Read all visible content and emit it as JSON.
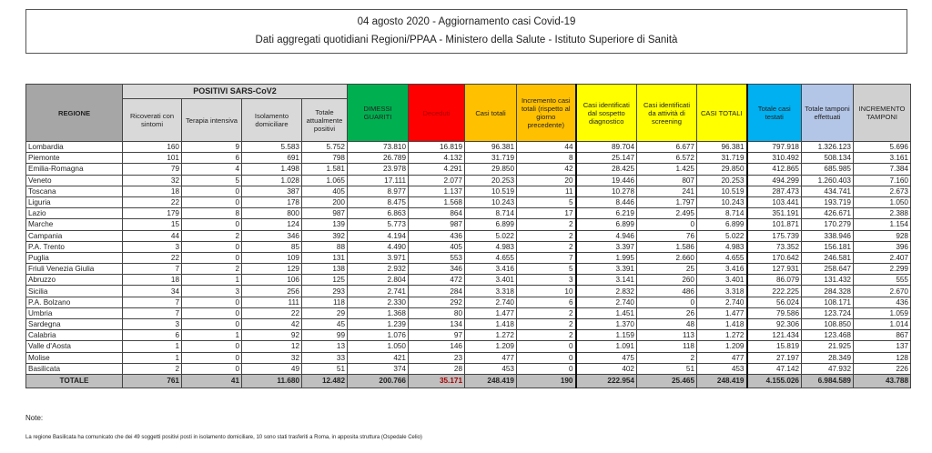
{
  "title": "04 agosto 2020 - Aggiornamento casi Covid-19",
  "subtitle": "Dati aggregati quotidiani Regioni/PPAA - Ministero della Salute - Istituto Superiore di Sanità",
  "header": {
    "regione": "REGIONE",
    "positivi_group": "POSITIVI SARS-CoV2",
    "columns": [
      "Ricoverati con sintomi",
      "Terapia intensiva",
      "Isolamento domiciliare",
      "Totale attualmente positivi",
      "DIMESSI GUARITI",
      "Deceduti",
      "Casi totali",
      "Incremento casi totali (rispetto al giorno precedente)",
      "Casi identificati dal sospetto diagnostico",
      "Casi identificati da attività di screening",
      "CASI TOTALI",
      "Totale casi testati",
      "Totale tamponi effettuati",
      "INCREMENTO TAMPONI"
    ]
  },
  "colors": {
    "dimessi": "#00b050",
    "deceduti": "#ff0000",
    "casi": "#ffc000",
    "identificati": "#ffff00",
    "testati": "#00b0f0",
    "tamponi": "#b4c6e7",
    "grey": "#bfbfbf"
  },
  "rows": [
    [
      "Lombardia",
      "160",
      "9",
      "5.583",
      "5.752",
      "73.810",
      "16.819",
      "96.381",
      "44",
      "89.704",
      "6.677",
      "96.381",
      "797.918",
      "1.326.123",
      "5.696"
    ],
    [
      "Piemonte",
      "101",
      "6",
      "691",
      "798",
      "26.789",
      "4.132",
      "31.719",
      "8",
      "25.147",
      "6.572",
      "31.719",
      "310.492",
      "508.134",
      "3.161"
    ],
    [
      "Emilia-Romagna",
      "79",
      "4",
      "1.498",
      "1.581",
      "23.978",
      "4.291",
      "29.850",
      "42",
      "28.425",
      "1.425",
      "29.850",
      "412.865",
      "685.985",
      "7.384"
    ],
    [
      "Veneto",
      "32",
      "5",
      "1.028",
      "1.065",
      "17.111",
      "2.077",
      "20.253",
      "20",
      "19.446",
      "807",
      "20.253",
      "494.299",
      "1.260.403",
      "7.160"
    ],
    [
      "Toscana",
      "18",
      "0",
      "387",
      "405",
      "8.977",
      "1.137",
      "10.519",
      "11",
      "10.278",
      "241",
      "10.519",
      "287.473",
      "434.741",
      "2.673"
    ],
    [
      "Liguria",
      "22",
      "0",
      "178",
      "200",
      "8.475",
      "1.568",
      "10.243",
      "5",
      "8.446",
      "1.797",
      "10.243",
      "103.441",
      "193.719",
      "1.050"
    ],
    [
      "Lazio",
      "179",
      "8",
      "800",
      "987",
      "6.863",
      "864",
      "8.714",
      "17",
      "6.219",
      "2.495",
      "8.714",
      "351.191",
      "426.671",
      "2.388"
    ],
    [
      "Marche",
      "15",
      "0",
      "124",
      "139",
      "5.773",
      "987",
      "6.899",
      "2",
      "6.899",
      "0",
      "6.899",
      "101.871",
      "170.279",
      "1.154"
    ],
    [
      "Campania",
      "44",
      "2",
      "346",
      "392",
      "4.194",
      "436",
      "5.022",
      "2",
      "4.946",
      "76",
      "5.022",
      "175.739",
      "338.946",
      "928"
    ],
    [
      "P.A. Trento",
      "3",
      "0",
      "85",
      "88",
      "4.490",
      "405",
      "4.983",
      "2",
      "3.397",
      "1.586",
      "4.983",
      "73.352",
      "156.181",
      "396"
    ],
    [
      "Puglia",
      "22",
      "0",
      "109",
      "131",
      "3.971",
      "553",
      "4.655",
      "7",
      "1.995",
      "2.660",
      "4.655",
      "170.642",
      "246.581",
      "2.407"
    ],
    [
      "Friuli Venezia Giulia",
      "7",
      "2",
      "129",
      "138",
      "2.932",
      "346",
      "3.416",
      "5",
      "3.391",
      "25",
      "3.416",
      "127.931",
      "258.647",
      "2.299"
    ],
    [
      "Abruzzo",
      "18",
      "1",
      "106",
      "125",
      "2.804",
      "472",
      "3.401",
      "3",
      "3.141",
      "260",
      "3.401",
      "86.079",
      "131.432",
      "555"
    ],
    [
      "Sicilia",
      "34",
      "3",
      "256",
      "293",
      "2.741",
      "284",
      "3.318",
      "10",
      "2.832",
      "486",
      "3.318",
      "222.225",
      "284.328",
      "2.670"
    ],
    [
      "P.A. Bolzano",
      "7",
      "0",
      "111",
      "118",
      "2.330",
      "292",
      "2.740",
      "6",
      "2.740",
      "0",
      "2.740",
      "56.024",
      "108.171",
      "436"
    ],
    [
      "Umbria",
      "7",
      "0",
      "22",
      "29",
      "1.368",
      "80",
      "1.477",
      "2",
      "1.451",
      "26",
      "1.477",
      "79.586",
      "123.724",
      "1.059"
    ],
    [
      "Sardegna",
      "3",
      "0",
      "42",
      "45",
      "1.239",
      "134",
      "1.418",
      "2",
      "1.370",
      "48",
      "1.418",
      "92.306",
      "108.850",
      "1.014"
    ],
    [
      "Calabria",
      "6",
      "1",
      "92",
      "99",
      "1.076",
      "97",
      "1.272",
      "2",
      "1.159",
      "113",
      "1.272",
      "121.434",
      "123.468",
      "867"
    ],
    [
      "Valle d'Aosta",
      "1",
      "0",
      "12",
      "13",
      "1.050",
      "146",
      "1.209",
      "0",
      "1.091",
      "118",
      "1.209",
      "15.819",
      "21.925",
      "137"
    ],
    [
      "Molise",
      "1",
      "0",
      "32",
      "33",
      "421",
      "23",
      "477",
      "0",
      "475",
      "2",
      "477",
      "27.197",
      "28.349",
      "128"
    ],
    [
      "Basilicata",
      "2",
      "0",
      "49",
      "51",
      "374",
      "28",
      "453",
      "0",
      "402",
      "51",
      "453",
      "47.142",
      "47.932",
      "226"
    ]
  ],
  "total": [
    "TOTALE",
    "761",
    "41",
    "11.680",
    "12.482",
    "200.766",
    "35.171",
    "248.419",
    "190",
    "222.954",
    "25.465",
    "248.419",
    "4.155.026",
    "6.984.589",
    "43.788"
  ],
  "note_label": "Note:",
  "note_text": "La regione Basilicata ha comunicato che dei 49 soggetti positivi posti in isolamento domiciliare, 10 sono stati trasferiti a Roma, in apposita struttura (Ospedale Celio)"
}
